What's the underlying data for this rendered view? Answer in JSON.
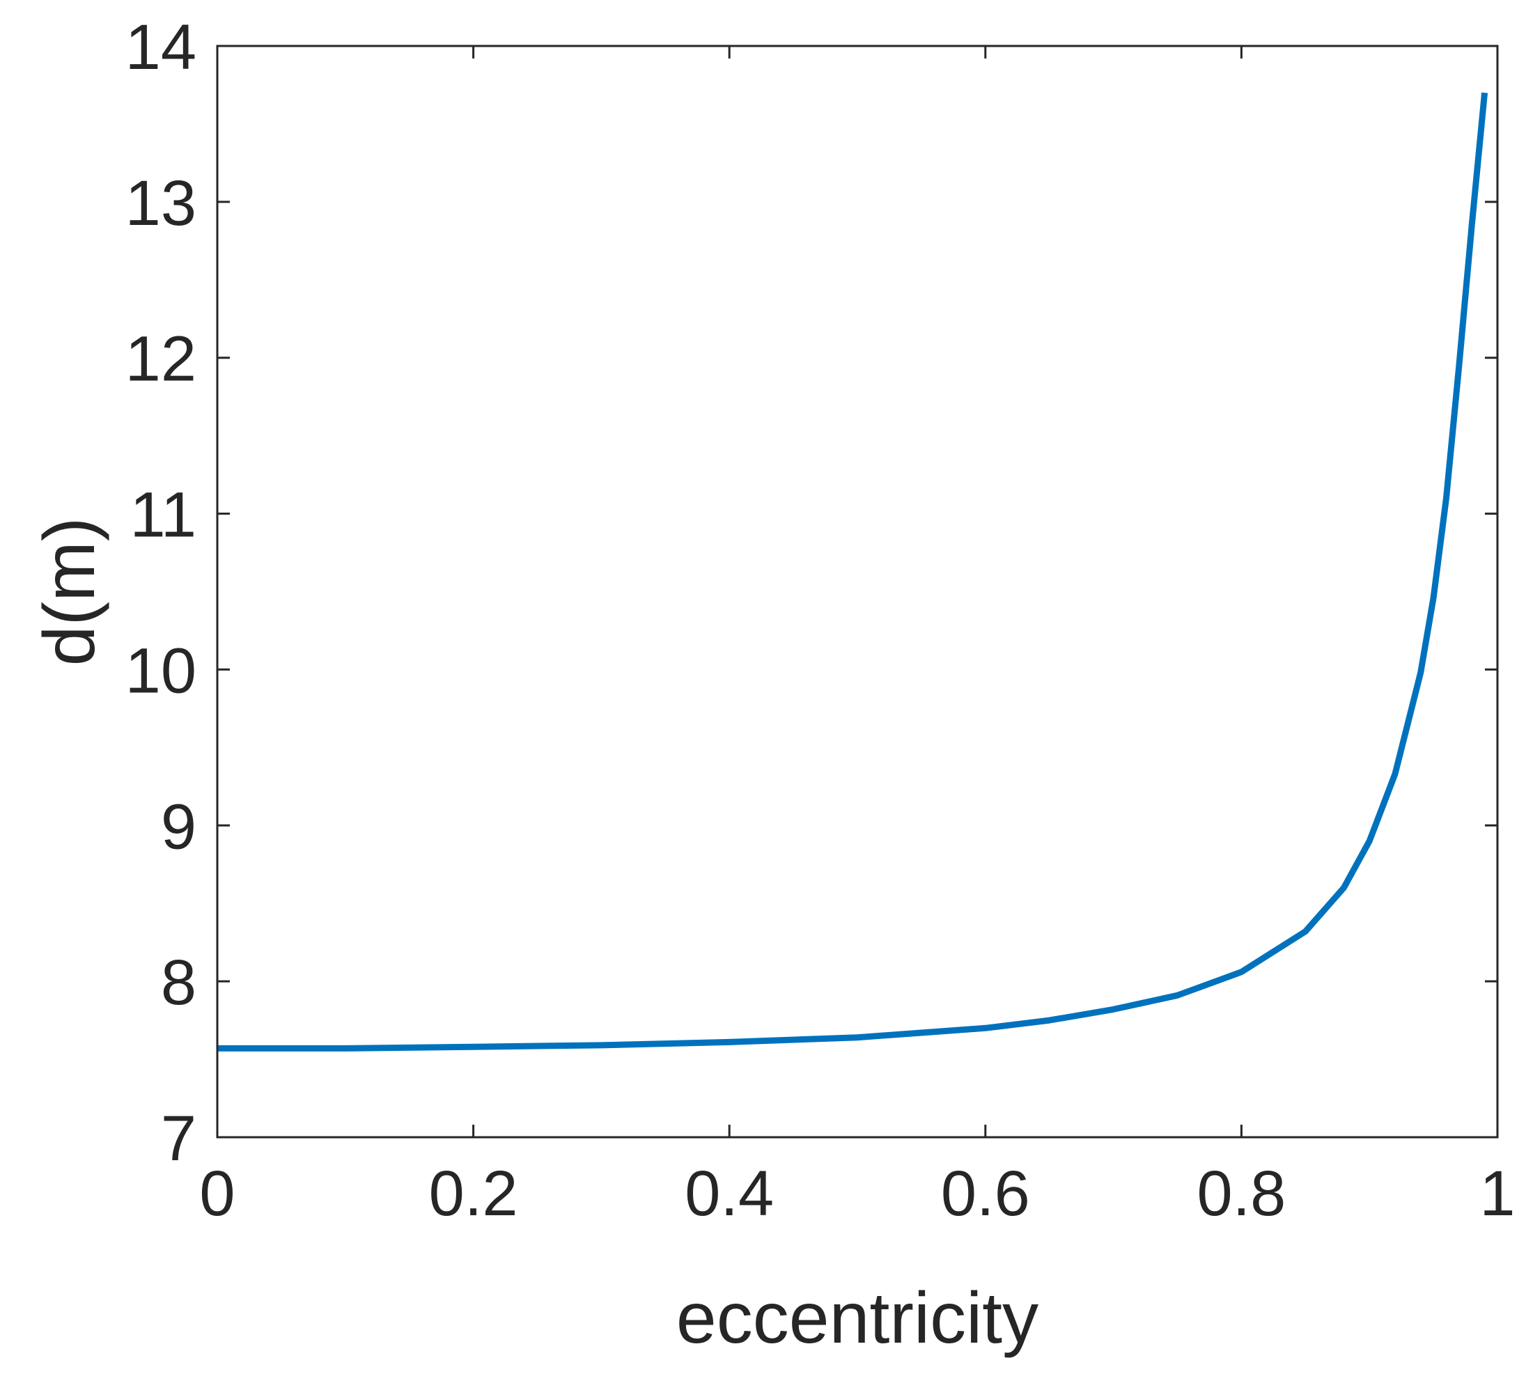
{
  "chart_data": {
    "type": "line",
    "title": "",
    "xlabel": "eccentricity",
    "ylabel": "d(m)",
    "xlim": [
      0,
      1
    ],
    "ylim": [
      7,
      14
    ],
    "xticks": [
      "0",
      "0.2",
      "0.4",
      "0.6",
      "0.8",
      "1"
    ],
    "yticks": [
      "7",
      "8",
      "9",
      "10",
      "11",
      "12",
      "13",
      "14"
    ],
    "grid": false,
    "legend": "none",
    "series": [
      {
        "color": "#0072BD",
        "x": [
          0,
          0.1,
          0.2,
          0.3,
          0.4,
          0.5,
          0.55,
          0.6,
          0.65,
          0.7,
          0.75,
          0.8,
          0.85,
          0.88,
          0.9,
          0.92,
          0.94,
          0.95,
          0.96,
          0.97,
          0.98,
          0.99
        ],
        "y": [
          7.57,
          7.57,
          7.58,
          7.59,
          7.61,
          7.64,
          7.67,
          7.7,
          7.75,
          7.82,
          7.91,
          8.06,
          8.32,
          8.6,
          8.9,
          9.33,
          9.98,
          10.46,
          11.1,
          11.95,
          12.85,
          13.7
        ]
      }
    ]
  }
}
